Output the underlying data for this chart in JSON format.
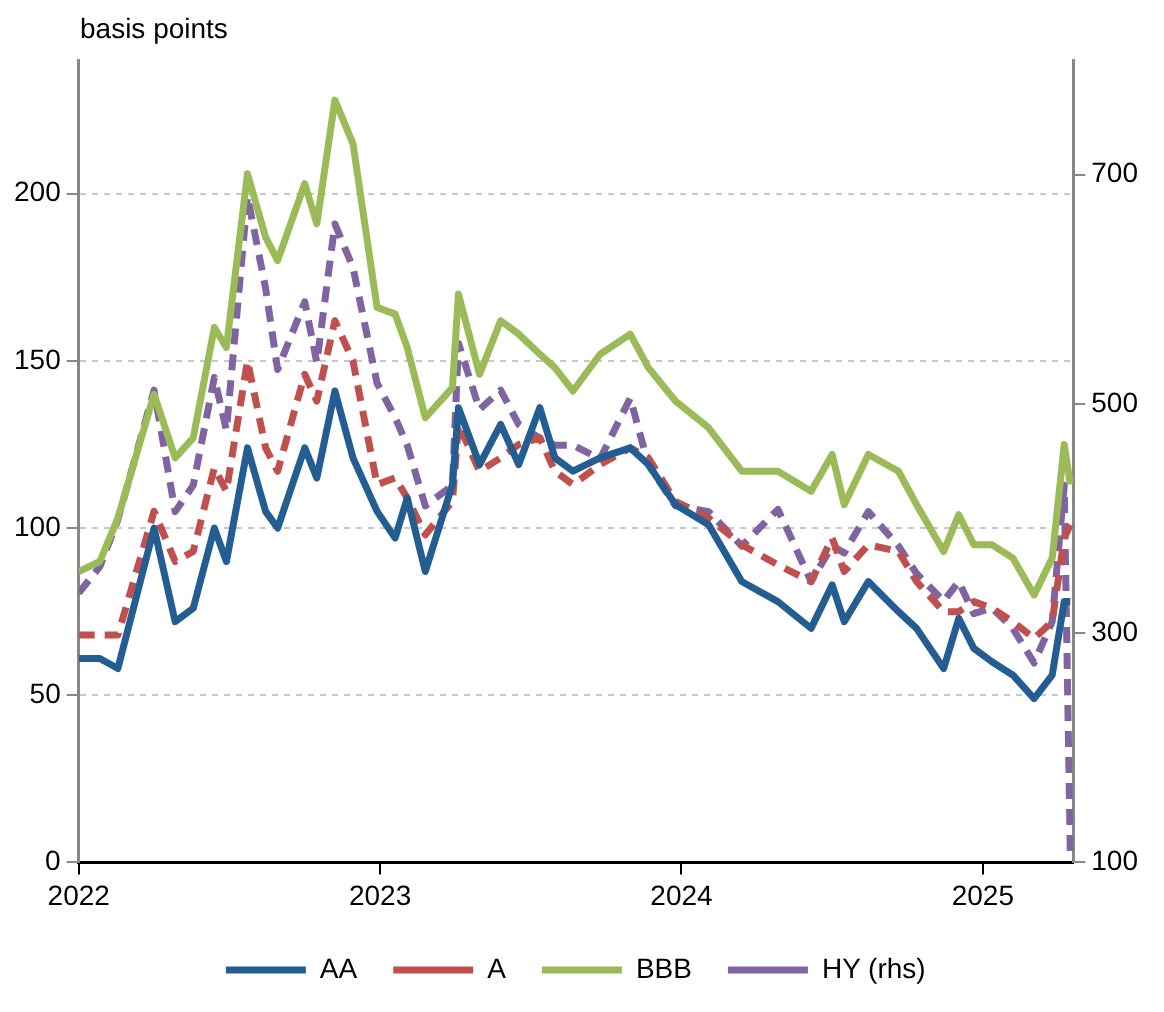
{
  "chart_data": {
    "type": "line",
    "ylabel": "basis points",
    "x": [
      2022,
      2022.07,
      2022.13,
      2022.25,
      2022.32,
      2022.38,
      2022.45,
      2022.49,
      2022.56,
      2022.62,
      2022.66,
      2022.75,
      2022.79,
      2022.85,
      2022.91,
      2022.99,
      2023.05,
      2023.09,
      2023.15,
      2023.24,
      2023.26,
      2023.33,
      2023.4,
      2023.46,
      2023.53,
      2023.58,
      2023.64,
      2023.73,
      2023.83,
      2023.89,
      2023.98,
      2024.09,
      2024.2,
      2024.32,
      2024.43,
      2024.5,
      2024.54,
      2024.62,
      2024.72,
      2024.78,
      2024.87,
      2024.92,
      2024.97,
      2025.03,
      2025.1,
      2025.17,
      2025.23,
      2025.27,
      2025.29
    ],
    "xlim": [
      2022,
      2025.3
    ],
    "xticks": [
      2022,
      2023,
      2024,
      2025
    ],
    "ylim": [
      0,
      240
    ],
    "yticks": [
      0,
      50,
      100,
      150,
      200
    ],
    "y2lim": [
      100,
      800
    ],
    "y2ticks": [
      100,
      300,
      500,
      700
    ],
    "grid": "y",
    "legend": "bottom",
    "marker": "none",
    "series": [
      {
        "name": "AA",
        "color": "#245d91",
        "line_style": "solid",
        "values": [
          61,
          61,
          58,
          100,
          72,
          76,
          100,
          90,
          124,
          105,
          100,
          124,
          115,
          141,
          121,
          105,
          97,
          109,
          87,
          113,
          136,
          119,
          131,
          119,
          136,
          121,
          117,
          121,
          124,
          119,
          107,
          101,
          84,
          78,
          70,
          83,
          72,
          84,
          75,
          70,
          58,
          73,
          64,
          60,
          56,
          49,
          56,
          78,
          78
        ]
      },
      {
        "name": "A",
        "color": "#c0504d",
        "line_style": "dashed",
        "values": [
          68,
          68,
          68,
          105,
          90,
          93,
          118,
          111,
          150,
          124,
          117,
          146,
          138,
          162,
          150,
          113,
          115,
          109,
          98,
          108,
          131,
          117,
          121,
          125,
          127,
          117,
          113,
          119,
          124,
          121,
          108,
          103,
          95,
          89,
          84,
          97,
          87,
          95,
          93,
          84,
          75,
          75,
          78,
          76,
          72,
          67,
          72,
          97,
          101
        ]
      },
      {
        "name": "BBB",
        "color": "#9bbb59",
        "line_style": "solid",
        "values": [
          87,
          90,
          103,
          140,
          121,
          127,
          160,
          154,
          206,
          187,
          180,
          203,
          191,
          228,
          215,
          166,
          164,
          154,
          133,
          142,
          170,
          146,
          162,
          158,
          152,
          148,
          141,
          152,
          158,
          148,
          138,
          130,
          117,
          117,
          111,
          122,
          107,
          122,
          117,
          107,
          93,
          104,
          95,
          95,
          91,
          80,
          91,
          125,
          113
        ]
      },
      {
        "name": "HY (rhs)",
        "color": "#8064a2",
        "line_style": "dashed",
        "axis": "y2",
        "values": [
          335,
          358,
          399,
          512,
          406,
          429,
          523,
          477,
          681,
          601,
          530,
          589,
          536,
          657,
          619,
          518,
          488,
          464,
          411,
          429,
          553,
          495,
          512,
          482,
          470,
          464,
          464,
          452,
          505,
          447,
          411,
          406,
          376,
          408,
          345,
          376,
          370,
          406,
          376,
          352,
          328,
          345,
          317,
          322,
          304,
          274,
          310,
          429,
          110
        ]
      }
    ]
  }
}
